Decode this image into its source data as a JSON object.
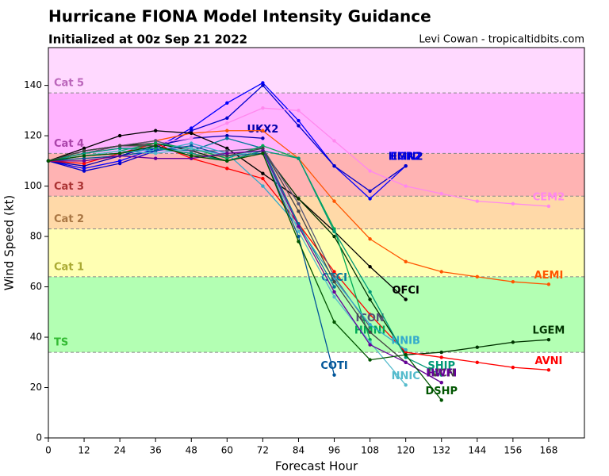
{
  "chart_data": {
    "type": "line",
    "title": "Hurricane FIONA Model Intensity Guidance",
    "subtitle": "Initialized at 00z Sep 21 2022",
    "credit": "Levi Cowan - tropicaltidbits.com",
    "x_label": "Forecast Hour",
    "y_label": "Wind Speed (kt)",
    "xlim": [
      0,
      180
    ],
    "ylim": [
      0,
      155
    ],
    "xticks": [
      0,
      12,
      24,
      36,
      48,
      60,
      72,
      84,
      96,
      108,
      120,
      132,
      144,
      156,
      168
    ],
    "yticks": [
      0,
      20,
      40,
      60,
      80,
      100,
      120,
      140
    ],
    "bands": [
      {
        "label": "TS",
        "from": 34,
        "color": "#b3ffb3",
        "text_color": "#33bb33"
      },
      {
        "label": "Cat 1",
        "from": 64,
        "color": "#ffffb3",
        "text_color": "#aaaa33"
      },
      {
        "label": "Cat 2",
        "from": 83,
        "color": "#ffd9a8",
        "text_color": "#aa7744"
      },
      {
        "label": "Cat 3",
        "from": 96,
        "color": "#ffb3b3",
        "text_color": "#aa3333"
      },
      {
        "label": "Cat 4",
        "from": 113,
        "color": "#ffb3ff",
        "text_color": "#aa44aa"
      },
      {
        "label": "Cat 5",
        "from": 137,
        "color": "#ffd9ff",
        "text_color": "#bb66bb"
      }
    ],
    "x": [
      0,
      12,
      24,
      36,
      48,
      60,
      72,
      84,
      96,
      108,
      120,
      132,
      144,
      156,
      168
    ],
    "series": [
      {
        "name": "EGR2",
        "color": "#0000ff",
        "values": [
          110,
          107,
          110,
          115,
          123,
          133,
          141,
          126,
          108,
          95,
          108,
          null,
          null,
          null,
          null
        ]
      },
      {
        "name": "HMN2",
        "color": "#0000cc",
        "values": [
          110,
          106,
          109,
          114,
          122,
          127,
          140,
          124,
          108,
          98,
          108,
          null,
          null,
          null,
          null
        ]
      },
      {
        "name": "UKX2",
        "color": "#0000aa",
        "values": [
          110,
          108,
          112,
          116,
          119,
          120,
          119,
          null,
          null,
          null,
          null,
          null,
          null,
          null,
          null
        ]
      },
      {
        "name": "CEM2",
        "color": "#ff88ee",
        "values": [
          110,
          113,
          115,
          117,
          119,
          125,
          131,
          130,
          118,
          106,
          100,
          97,
          94,
          93,
          92
        ]
      },
      {
        "name": "AEMI",
        "color": "#ff5500",
        "values": [
          110,
          113,
          116,
          118,
          121,
          122,
          122,
          111,
          94,
          79,
          70,
          66,
          64,
          62,
          61
        ]
      },
      {
        "name": "OFCI",
        "color": "#000000",
        "values": [
          110,
          115,
          120,
          122,
          121,
          115,
          105,
          95,
          82,
          68,
          55,
          null,
          null,
          null,
          null
        ]
      },
      {
        "name": "LGEM",
        "color": "#003300",
        "values": [
          110,
          114,
          116,
          117,
          114,
          110,
          114,
          95,
          80,
          55,
          33,
          34,
          36,
          38,
          39
        ]
      },
      {
        "name": "AVNI",
        "color": "#ff0000",
        "values": [
          110,
          109,
          113,
          117,
          111,
          107,
          103,
          85,
          66,
          49,
          34,
          32,
          30,
          28,
          27
        ]
      },
      {
        "name": "CTCI",
        "color": "#007799",
        "values": [
          110,
          112,
          113,
          115,
          114,
          119,
          115,
          85,
          60,
          null,
          null,
          null,
          null,
          null,
          null
        ]
      },
      {
        "name": "ICON",
        "color": "#555577",
        "values": [
          110,
          113,
          116,
          118,
          114,
          114,
          115,
          93,
          64,
          44,
          null,
          null,
          null,
          null,
          null
        ]
      },
      {
        "name": "HMNI",
        "color": "#00aa55",
        "values": [
          110,
          112,
          114,
          117,
          115,
          111,
          116,
          111,
          83,
          39,
          null,
          null,
          null,
          null,
          null
        ]
      },
      {
        "name": "NNIB",
        "color": "#33aacc",
        "values": [
          110,
          113,
          115,
          114,
          117,
          113,
          100,
          84,
          63,
          45,
          35,
          null,
          null,
          null,
          null
        ]
      },
      {
        "name": "COTI",
        "color": "#005599",
        "values": [
          110,
          111,
          112,
          114,
          116,
          112,
          113,
          80,
          25,
          null,
          null,
          null,
          null,
          null,
          null
        ]
      },
      {
        "name": "NNIC",
        "color": "#55bbcc",
        "values": [
          110,
          112,
          114,
          113,
          115,
          112,
          114,
          82,
          56,
          38,
          21,
          null,
          null,
          null,
          null
        ]
      },
      {
        "name": "SHIP",
        "color": "#009977",
        "values": [
          110,
          113,
          115,
          115,
          113,
          110,
          114,
          111,
          82,
          58,
          32,
          25,
          null,
          null,
          null
        ]
      },
      {
        "name": "IVCN",
        "color": "#444444",
        "values": [
          110,
          114,
          116,
          116,
          112,
          112,
          115,
          90,
          62,
          42,
          30,
          22,
          null,
          null,
          null
        ]
      },
      {
        "name": "HWFI",
        "color": "#660099",
        "values": [
          110,
          110,
          112,
          111,
          111,
          113,
          114,
          84,
          58,
          37,
          30,
          22,
          null,
          null,
          null
        ]
      },
      {
        "name": "DSHP",
        "color": "#005500",
        "values": [
          110,
          112,
          113,
          116,
          112,
          110,
          113,
          78,
          46,
          31,
          33,
          15,
          null,
          null,
          null
        ]
      }
    ]
  }
}
